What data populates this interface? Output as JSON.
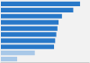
{
  "chart_data": {
    "type": "bar",
    "orientation": "horizontal",
    "categories": [
      null,
      null,
      null,
      null,
      null,
      null,
      null,
      null,
      null,
      null
    ],
    "values": [
      350,
      320,
      270,
      255,
      250,
      245,
      240,
      235,
      150,
      72
    ],
    "colors": [
      "#2878c8",
      "#2878c8",
      "#2878c8",
      "#2878c8",
      "#2878c8",
      "#2878c8",
      "#2878c8",
      "#2878c8",
      "#a8c8e8",
      "#a8c8e8"
    ],
    "xlim": [
      0,
      390
    ],
    "grid": false,
    "tick_labels": false
  }
}
